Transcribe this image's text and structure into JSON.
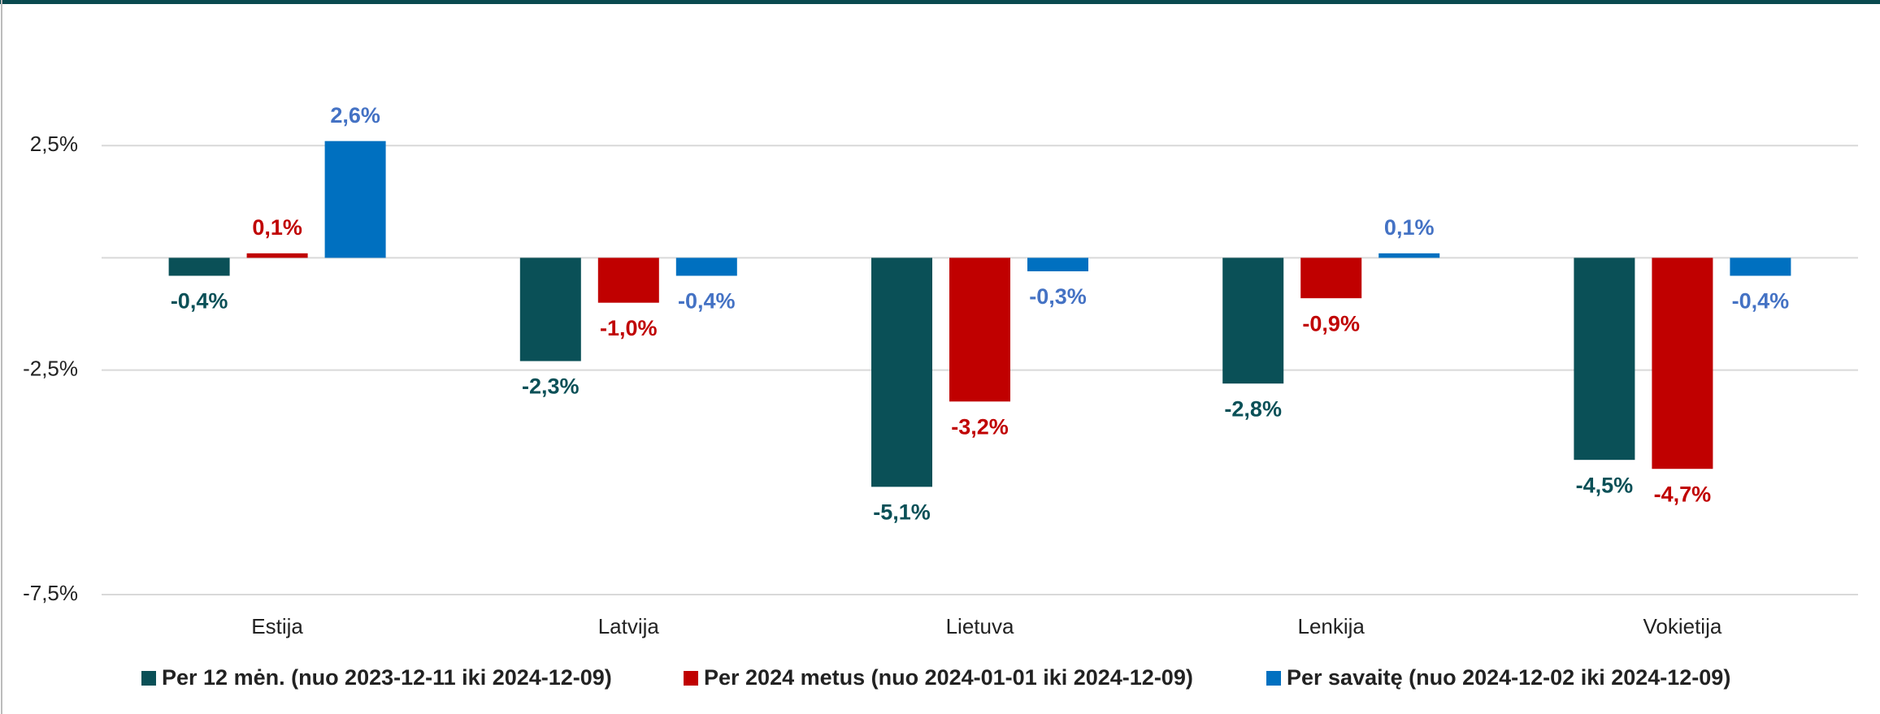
{
  "chart_data": {
    "type": "bar",
    "categories": [
      "Estija",
      "Latvija",
      "Lietuva",
      "Lenkija",
      "Vokietija"
    ],
    "series": [
      {
        "name": "Per 12 mėn. (nuo 2023-12-11 iki 2024-12-09)",
        "color": "#0a5057",
        "label_color": "#0a5057",
        "values": [
          -0.4,
          -2.3,
          -5.1,
          -2.8,
          -4.5
        ],
        "value_labels": [
          "-0,4%",
          "-2,3%",
          "-5,1%",
          "-2,8%",
          "-4,5%"
        ]
      },
      {
        "name": "Per 2024 metus (nuo 2024-01-01 iki 2024-12-09)",
        "color": "#c00000",
        "label_color": "#c00000",
        "values": [
          0.1,
          -1.0,
          -3.2,
          -0.9,
          -4.7
        ],
        "value_labels": [
          "0,1%",
          "-1,0%",
          "-3,2%",
          "-0,9%",
          "-4,7%"
        ]
      },
      {
        "name": "Per savaitę (nuo 2024-12-02 iki 2024-12-09)",
        "color": "#0070c0",
        "label_color": "#4472c4",
        "values": [
          2.6,
          -0.4,
          -0.3,
          0.1,
          -0.4
        ],
        "value_labels": [
          "2,6%",
          "-0,4%",
          "-0,3%",
          "0,1%",
          "-0,4%"
        ]
      }
    ],
    "ylim": [
      -7.5,
      5
    ],
    "yticks": [
      {
        "value": -7.5,
        "label": "-7,5%"
      },
      {
        "value": -2.5,
        "label": "-2,5%"
      },
      {
        "value": 2.5,
        "label": "2,5%"
      }
    ],
    "grid": true,
    "legend": "bottom"
  }
}
